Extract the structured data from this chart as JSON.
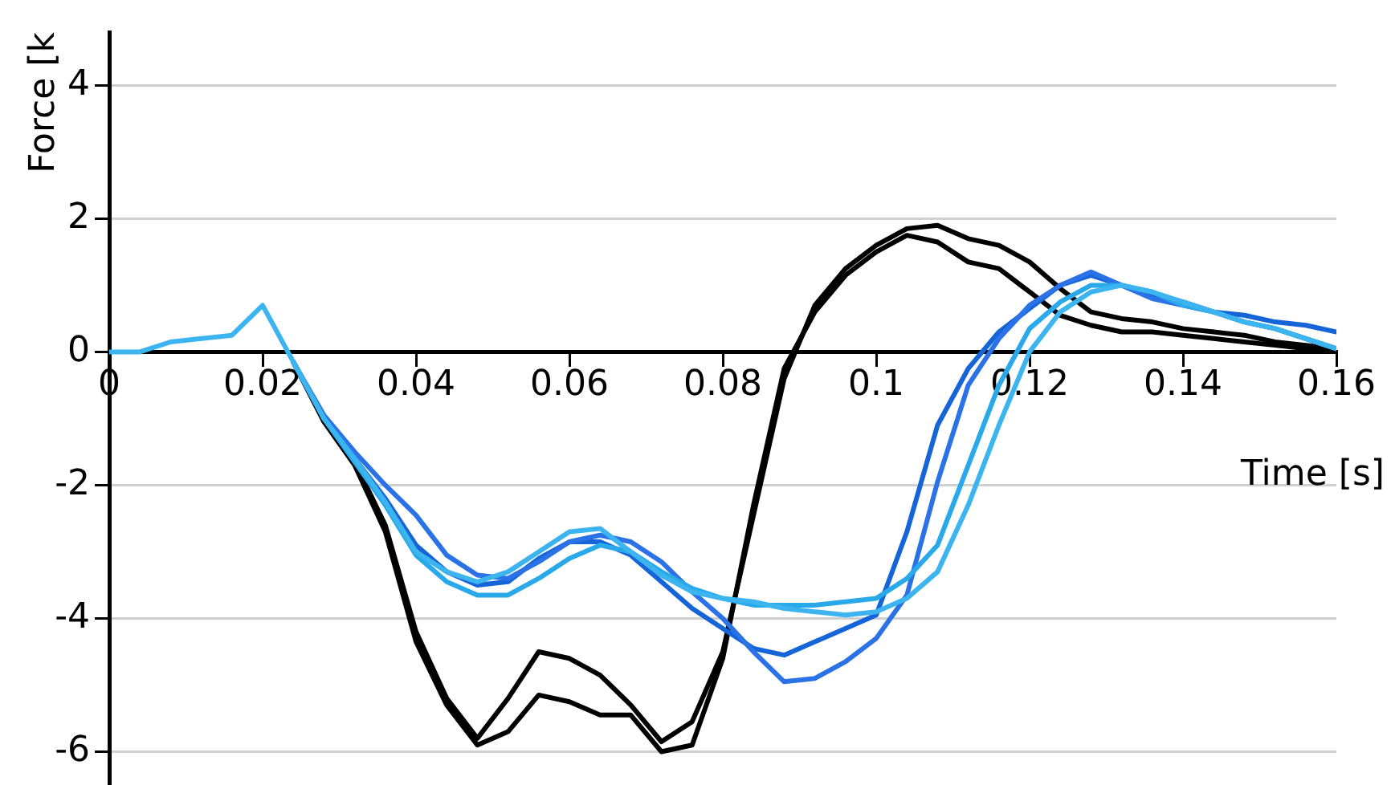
{
  "chart_data": {
    "type": "line",
    "xlabel": "Time [s]",
    "ylabel": "Force [k",
    "x": [
      0,
      0.004,
      0.008,
      0.012,
      0.016,
      0.02,
      0.024,
      0.028,
      0.032,
      0.036,
      0.04,
      0.044,
      0.048,
      0.052,
      0.056,
      0.06,
      0.064,
      0.068,
      0.072,
      0.076,
      0.08,
      0.084,
      0.088,
      0.092,
      0.096,
      0.1,
      0.104,
      0.108,
      0.112,
      0.116,
      0.12,
      0.124,
      0.128,
      0.132,
      0.136,
      0.14,
      0.144,
      0.148,
      0.152,
      0.156,
      0.16
    ],
    "series": [
      {
        "color": "#000000",
        "values": [
          null,
          null,
          null,
          null,
          null,
          null,
          -0.15,
          -1.05,
          -1.7,
          -2.7,
          -4.35,
          -5.3,
          -5.9,
          -5.7,
          -5.15,
          -5.25,
          -5.45,
          -5.45,
          -6.0,
          -5.9,
          -4.6,
          -2.3,
          -0.25,
          0.6,
          1.15,
          1.5,
          1.75,
          1.65,
          1.35,
          1.25,
          0.9,
          0.55,
          0.4,
          0.3,
          0.3,
          0.25,
          0.2,
          0.15,
          0.1,
          0.05,
          0.05
        ]
      },
      {
        "color": "#000000",
        "values": [
          null,
          null,
          null,
          null,
          null,
          null,
          -0.15,
          -1.0,
          -1.65,
          -2.6,
          -4.2,
          -5.2,
          -5.8,
          -5.2,
          -4.5,
          -4.6,
          -4.85,
          -5.3,
          -5.85,
          -5.55,
          -4.5,
          -2.45,
          -0.4,
          0.7,
          1.25,
          1.6,
          1.85,
          1.9,
          1.7,
          1.6,
          1.35,
          0.95,
          0.6,
          0.5,
          0.45,
          0.35,
          0.3,
          0.25,
          0.15,
          0.1,
          0.05
        ]
      },
      {
        "color": "#1565d8",
        "values": [
          null,
          null,
          null,
          null,
          null,
          null,
          -0.15,
          -1.0,
          -1.6,
          -2.2,
          -2.9,
          -3.3,
          -3.5,
          -3.45,
          -3.1,
          -2.85,
          -2.85,
          -3.05,
          -3.45,
          -3.85,
          -4.15,
          -4.45,
          -4.55,
          -4.35,
          -4.15,
          -3.95,
          -2.7,
          -1.1,
          -0.25,
          0.3,
          0.65,
          1.0,
          1.15,
          1.0,
          0.85,
          0.75,
          0.6,
          0.55,
          0.45,
          0.4,
          0.3
        ]
      },
      {
        "color": "#2a72e6",
        "values": [
          null,
          null,
          null,
          null,
          null,
          null,
          -0.15,
          -0.95,
          -1.5,
          -2.0,
          -2.45,
          -3.05,
          -3.35,
          -3.4,
          -3.15,
          -2.85,
          -2.75,
          -2.85,
          -3.15,
          -3.6,
          -4.0,
          -4.5,
          -4.95,
          -4.9,
          -4.65,
          -4.3,
          -3.65,
          -1.95,
          -0.5,
          0.2,
          0.7,
          1.0,
          1.2,
          1.0,
          0.8,
          0.7,
          0.6,
          0.45,
          0.35,
          0.2,
          0.05
        ]
      },
      {
        "color": "#29a9ea",
        "values": [
          null,
          null,
          null,
          null,
          null,
          null,
          -0.15,
          -1.0,
          -1.65,
          -2.3,
          -3.05,
          -3.45,
          -3.65,
          -3.65,
          -3.4,
          -3.1,
          -2.9,
          -3.0,
          -3.3,
          -3.55,
          -3.7,
          -3.8,
          -3.8,
          -3.8,
          -3.75,
          -3.7,
          -3.4,
          -2.9,
          -1.7,
          -0.5,
          0.35,
          0.75,
          1.0,
          1.0,
          0.9,
          0.7,
          0.6,
          0.45,
          0.35,
          0.2,
          0.05
        ]
      },
      {
        "color": "#3cb4f0",
        "values": [
          0,
          0,
          0.15,
          0.2,
          0.25,
          0.7,
          -0.15,
          -1.0,
          -1.6,
          -2.25,
          -3.0,
          -3.3,
          -3.45,
          -3.3,
          -3.0,
          -2.7,
          -2.65,
          -3.0,
          -3.35,
          -3.6,
          -3.7,
          -3.75,
          -3.85,
          -3.9,
          -3.95,
          -3.9,
          -3.7,
          -3.3,
          -2.3,
          -1.1,
          0.0,
          0.6,
          0.9,
          1.0,
          0.9,
          0.75,
          0.6,
          0.45,
          0.35,
          0.2,
          0.05
        ]
      }
    ],
    "xlim": [
      0,
      0.16
    ],
    "xticks": [
      0,
      0.02,
      0.04,
      0.06,
      0.08,
      0.1,
      0.12,
      0.14,
      0.16
    ],
    "ylim": [
      -6.5,
      4.8
    ],
    "yticks": [
      -6,
      -4,
      -2,
      0,
      2,
      4
    ],
    "grid": "y",
    "legend": false,
    "marker": "none",
    "line_style": "solid"
  }
}
